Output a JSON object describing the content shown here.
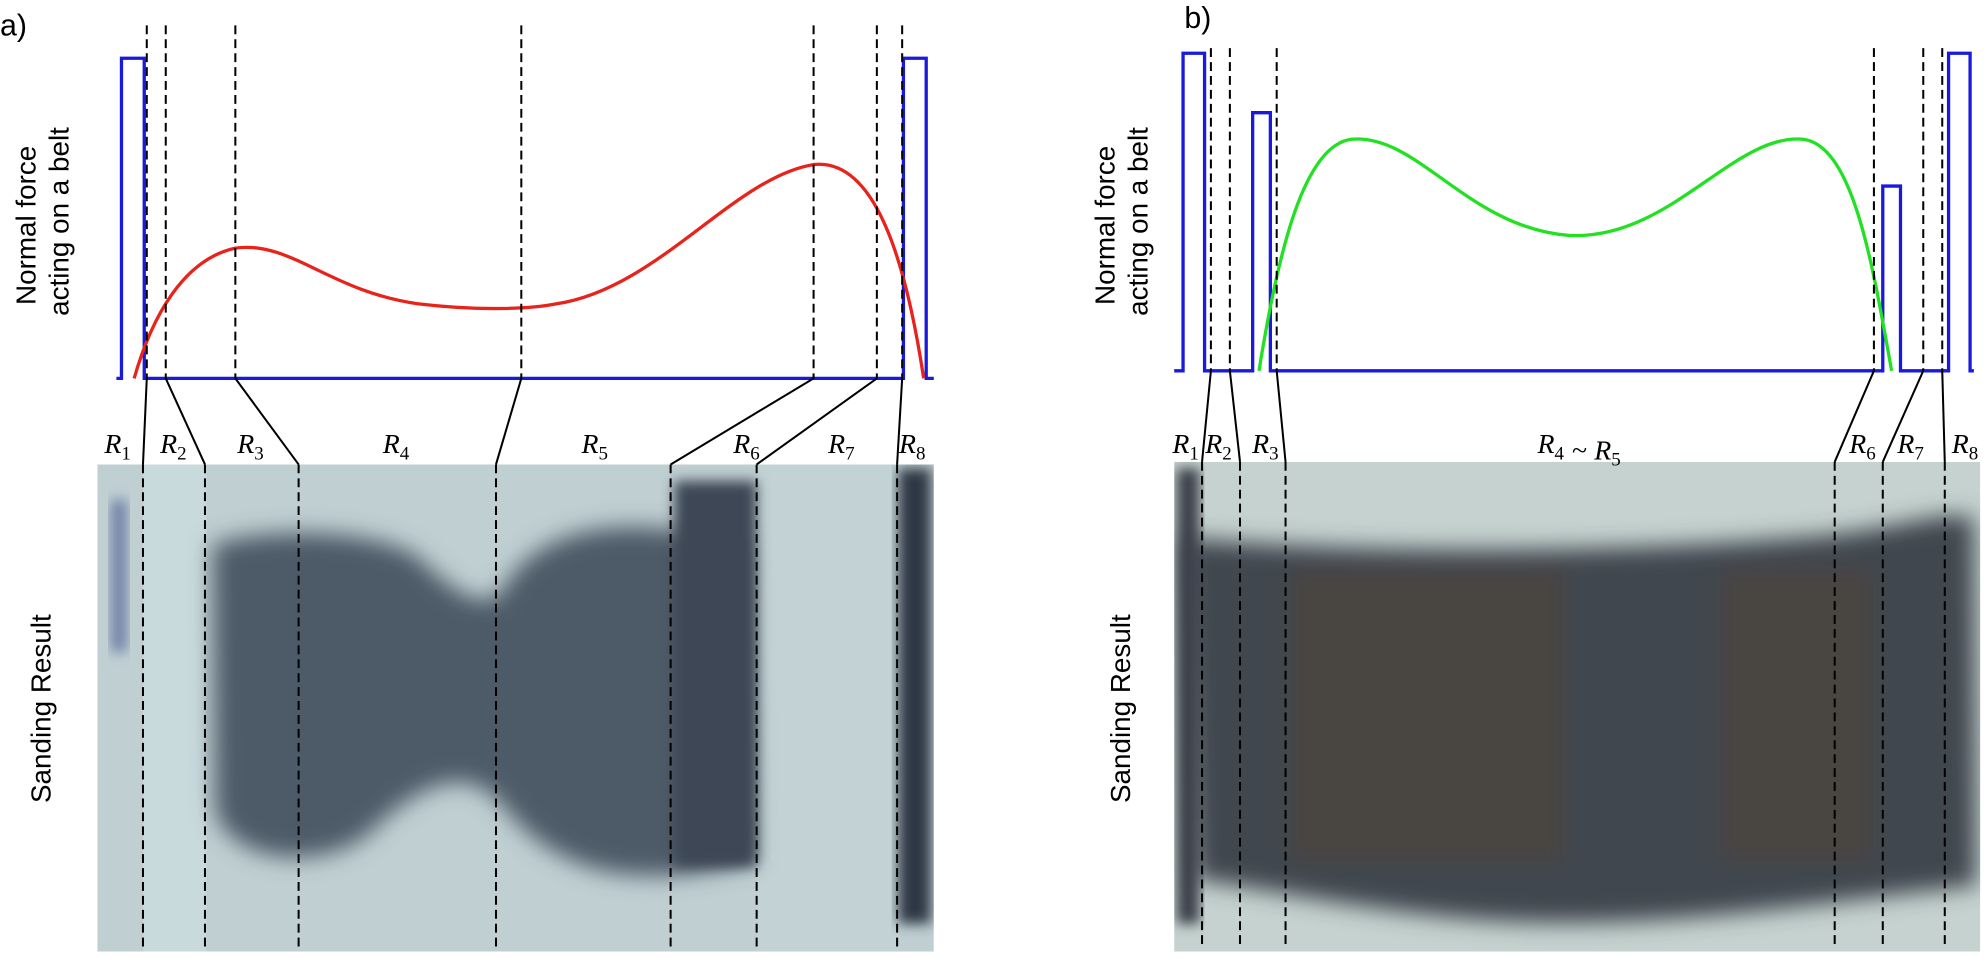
{
  "panels": [
    {
      "tag": "a)",
      "y_label": [
        "Normal force",
        "acting on a belt"
      ],
      "image_label": "Sanding Result",
      "regions": [
        {
          "parts": [
            {
              "text": "R",
              "sub": "1"
            }
          ]
        },
        {
          "parts": [
            {
              "text": "R",
              "sub": "2"
            }
          ]
        },
        {
          "parts": [
            {
              "text": "R",
              "sub": "3"
            }
          ]
        },
        {
          "parts": [
            {
              "text": "R",
              "sub": "4"
            }
          ]
        },
        {
          "parts": [
            {
              "text": "R",
              "sub": "5"
            }
          ]
        },
        {
          "parts": [
            {
              "text": "R",
              "sub": "6"
            }
          ]
        },
        {
          "parts": [
            {
              "text": "R",
              "sub": "7"
            }
          ]
        },
        {
          "parts": [
            {
              "text": "R",
              "sub": "8"
            }
          ]
        }
      ]
    },
    {
      "tag": "b)",
      "y_label": [
        "Normal force",
        "acting on a belt"
      ],
      "image_label": "Sanding Result",
      "regions": [
        {
          "parts": [
            {
              "text": "R",
              "sub": "1"
            }
          ]
        },
        {
          "parts": [
            {
              "text": "R",
              "sub": "2"
            }
          ]
        },
        {
          "parts": [
            {
              "text": "R",
              "sub": "3"
            }
          ]
        },
        {
          "parts": [
            {
              "text": "R",
              "sub": "4"
            },
            {
              "text": "~"
            },
            {
              "text": "R",
              "sub": "5"
            }
          ]
        },
        {
          "parts": [
            {
              "text": "R",
              "sub": "6"
            }
          ]
        },
        {
          "parts": [
            {
              "text": "R",
              "sub": "7"
            }
          ]
        },
        {
          "parts": [
            {
              "text": "R",
              "sub": "8"
            }
          ]
        }
      ]
    }
  ]
}
